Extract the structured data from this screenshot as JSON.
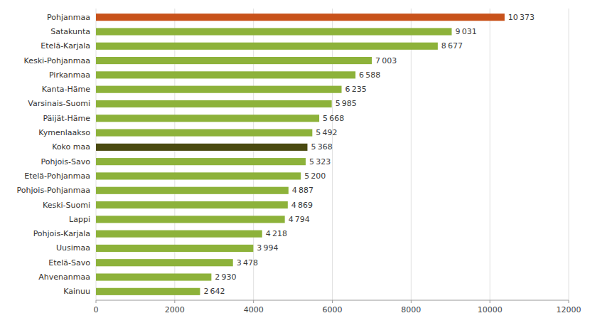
{
  "chart_data": {
    "type": "bar",
    "orientation": "horizontal",
    "categories": [
      "Kainuu",
      "Ahvenanmaa",
      "Etelä-Savo",
      "Uusimaa",
      "Pohjois-Karjala",
      "Lappi",
      "Keski-Suomi",
      "Pohjois-Pohjanmaa",
      "Etelä-Pohjanmaa",
      "Pohjois-Savo",
      "Koko maa",
      "Kymenlaakso",
      "Päijät-Häme",
      "Varsinais-Suomi",
      "Kanta-Häme",
      "Pirkanmaa",
      "Keski-Pohjanmaa",
      "Etelä-Karjala",
      "Satakunta",
      "Pohjanmaa"
    ],
    "values": [
      2642,
      2930,
      3478,
      3994,
      4218,
      4794,
      4869,
      4887,
      5200,
      5323,
      5368,
      5492,
      5668,
      5985,
      6235,
      6588,
      7003,
      8677,
      9031,
      10373
    ],
    "value_labels": [
      "2 642",
      "2 930",
      "3 478",
      "3 994",
      "4 218",
      "4 794",
      "4 869",
      "4 887",
      "5 200",
      "5 323",
      "5 368",
      "5 492",
      "5 668",
      "5 985",
      "6 235",
      "6 588",
      "7 003",
      "8 677",
      "9 031",
      "10 373"
    ],
    "colors": [
      "#8db23a",
      "#8db23a",
      "#8db23a",
      "#8db23a",
      "#8db23a",
      "#8db23a",
      "#8db23a",
      "#8db23a",
      "#8db23a",
      "#8db23a",
      "#4a4a10",
      "#8db23a",
      "#8db23a",
      "#8db23a",
      "#8db23a",
      "#8db23a",
      "#8db23a",
      "#8db23a",
      "#8db23a",
      "#c8521a"
    ],
    "xlim": [
      0,
      12000
    ],
    "xticks": [
      0,
      2000,
      4000,
      6000,
      8000,
      10000,
      12000
    ],
    "grid": true,
    "data_labels": true
  }
}
